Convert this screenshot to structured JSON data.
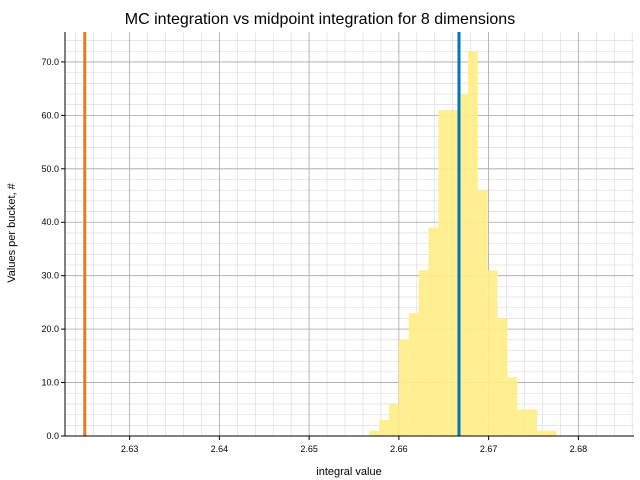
{
  "chart_data": {
    "type": "bar",
    "title": "MC integration vs midpoint integration for 8 dimensions",
    "xlabel": "integral value",
    "ylabel": "Values per bucket, #",
    "xlim": [
      2.6228,
      2.6862
    ],
    "ylim": [
      0,
      75.6
    ],
    "xticks": [
      "2.63",
      "2.64",
      "2.65",
      "2.66",
      "2.67",
      "2.68"
    ],
    "yticks": [
      "0.0",
      "10.0",
      "20.0",
      "30.0",
      "40.0",
      "50.0",
      "60.0",
      "70.0"
    ],
    "bin_width": 0.0011,
    "histogram": {
      "color": "#ffee88",
      "bins": [
        {
          "x": 2.6567,
          "count": 1
        },
        {
          "x": 2.6578,
          "count": 3
        },
        {
          "x": 2.6589,
          "count": 6
        },
        {
          "x": 2.66,
          "count": 18
        },
        {
          "x": 2.6611,
          "count": 23
        },
        {
          "x": 2.6622,
          "count": 31
        },
        {
          "x": 2.6633,
          "count": 39
        },
        {
          "x": 2.6644,
          "count": 61
        },
        {
          "x": 2.6655,
          "count": 61
        },
        {
          "x": 2.6666,
          "count": 64
        },
        {
          "x": 2.6677,
          "count": 72
        },
        {
          "x": 2.6688,
          "count": 46
        },
        {
          "x": 2.6699,
          "count": 31
        },
        {
          "x": 2.671,
          "count": 22
        },
        {
          "x": 2.6721,
          "count": 11
        },
        {
          "x": 2.6732,
          "count": 5
        },
        {
          "x": 2.6743,
          "count": 5
        },
        {
          "x": 2.6754,
          "count": 1
        },
        {
          "x": 2.6765,
          "count": 1
        }
      ]
    },
    "reference_lines": [
      {
        "x": 2.625,
        "color": "#ee7722"
      },
      {
        "x": 2.6667,
        "color": "#0077bb"
      }
    ],
    "grid": true
  }
}
